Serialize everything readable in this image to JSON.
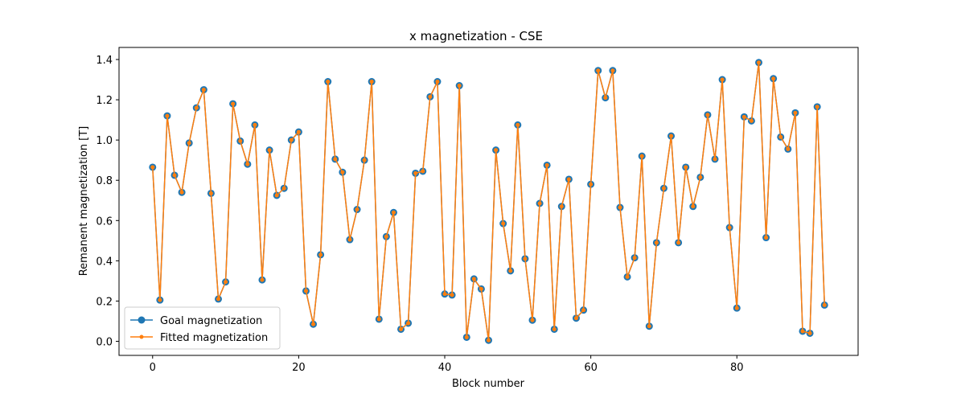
{
  "chart_data": {
    "type": "line",
    "title": "x magnetization - CSE",
    "xlabel": "Block number",
    "ylabel": "Remanent magnetization [T]",
    "xlim": [
      -4.6,
      96.6
    ],
    "ylim": [
      -0.07,
      1.46
    ],
    "xticks": [
      0,
      20,
      40,
      60,
      80
    ],
    "yticks": [
      0.0,
      0.2,
      0.4,
      0.6,
      0.8,
      1.0,
      1.2,
      1.4
    ],
    "xtick_labels": [
      "0",
      "20",
      "40",
      "60",
      "80"
    ],
    "ytick_labels": [
      "0.0",
      "0.2",
      "0.4",
      "0.6",
      "0.8",
      "1.0",
      "1.2",
      "1.4"
    ],
    "grid": false,
    "legend": "lower-left",
    "x": [
      0,
      1,
      2,
      3,
      4,
      5,
      6,
      7,
      8,
      9,
      10,
      11,
      12,
      13,
      14,
      15,
      16,
      17,
      18,
      19,
      20,
      21,
      22,
      23,
      24,
      25,
      26,
      27,
      28,
      29,
      30,
      31,
      32,
      33,
      34,
      35,
      36,
      37,
      38,
      39,
      40,
      41,
      42,
      43,
      44,
      45,
      46,
      47,
      48,
      49,
      50,
      51,
      52,
      53,
      54,
      55,
      56,
      57,
      58,
      59,
      60,
      61,
      62,
      63,
      64,
      65,
      66,
      67,
      68,
      69,
      70,
      71,
      72,
      73,
      74,
      75,
      76,
      77,
      78,
      79,
      80,
      81,
      82,
      83,
      84,
      85,
      86,
      87,
      88,
      89,
      90,
      91,
      92
    ],
    "series": [
      {
        "name": "Goal magnetization",
        "color": "#1f77b4",
        "marker": "circle",
        "values": [
          0.865,
          0.205,
          1.12,
          0.825,
          0.74,
          0.985,
          1.16,
          1.25,
          0.735,
          0.21,
          0.295,
          1.18,
          0.995,
          0.88,
          1.075,
          0.305,
          0.95,
          0.725,
          0.76,
          1.0,
          1.04,
          0.25,
          0.085,
          0.43,
          1.29,
          0.905,
          0.84,
          0.505,
          0.655,
          0.9,
          1.29,
          0.11,
          0.52,
          0.64,
          0.06,
          0.09,
          0.835,
          0.845,
          1.215,
          1.29,
          0.235,
          0.23,
          1.27,
          0.02,
          0.31,
          0.26,
          0.005,
          0.95,
          0.585,
          0.35,
          1.075,
          0.41,
          0.105,
          0.685,
          0.875,
          0.06,
          0.67,
          0.805,
          0.115,
          0.155,
          0.78,
          1.345,
          1.21,
          1.345,
          0.665,
          0.32,
          0.415,
          0.92,
          0.075,
          0.49,
          0.76,
          1.02,
          0.49,
          0.865,
          0.67,
          0.815,
          1.125,
          0.905,
          1.3,
          0.565,
          0.165,
          1.115,
          1.095,
          1.385,
          0.515,
          1.305,
          1.015,
          0.955,
          1.135,
          0.05,
          0.04,
          1.165,
          0.18
        ]
      },
      {
        "name": "Fitted magnetization",
        "color": "#ff7f0e",
        "marker": "dot",
        "values": [
          0.865,
          0.205,
          1.12,
          0.825,
          0.74,
          0.985,
          1.16,
          1.25,
          0.735,
          0.21,
          0.295,
          1.18,
          0.995,
          0.88,
          1.075,
          0.305,
          0.95,
          0.725,
          0.76,
          1.0,
          1.04,
          0.25,
          0.085,
          0.43,
          1.29,
          0.905,
          0.84,
          0.505,
          0.655,
          0.9,
          1.29,
          0.11,
          0.52,
          0.64,
          0.06,
          0.09,
          0.835,
          0.845,
          1.215,
          1.29,
          0.235,
          0.23,
          1.27,
          0.02,
          0.31,
          0.26,
          0.005,
          0.95,
          0.585,
          0.35,
          1.075,
          0.41,
          0.105,
          0.685,
          0.875,
          0.06,
          0.67,
          0.805,
          0.115,
          0.155,
          0.78,
          1.345,
          1.21,
          1.345,
          0.665,
          0.32,
          0.415,
          0.92,
          0.075,
          0.49,
          0.76,
          1.02,
          0.49,
          0.865,
          0.67,
          0.815,
          1.125,
          0.905,
          1.3,
          0.565,
          0.165,
          1.115,
          1.095,
          1.385,
          0.515,
          1.305,
          1.015,
          0.955,
          1.135,
          0.05,
          0.04,
          1.165,
          0.18
        ]
      }
    ]
  }
}
